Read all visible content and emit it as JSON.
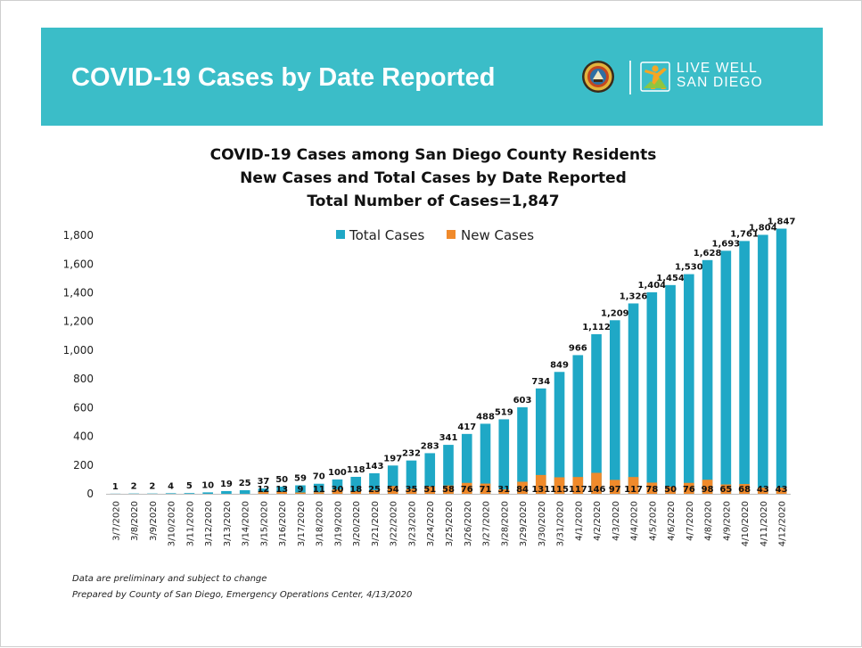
{
  "banner": {
    "title": "COVID-19 Cases by Date Reported",
    "logo_text_line1": "LIVE WELL",
    "logo_text_line2": "SAN DIEGO"
  },
  "colors": {
    "banner": "#3bbdc8",
    "total_series": "#1fa8c6",
    "new_series": "#f08a2b"
  },
  "chart_data": {
    "type": "bar",
    "title_lines": [
      "COVID-19 Cases among San Diego County Residents",
      "New Cases and Total Cases by Date Reported",
      "Total Number of Cases=1,847"
    ],
    "xlabel": "",
    "ylabel": "",
    "ylim": [
      0,
      1900
    ],
    "yticks": [
      0,
      200,
      400,
      600,
      800,
      1000,
      1200,
      1400,
      1600,
      1800
    ],
    "ytick_labels": [
      "0",
      "200",
      "400",
      "600",
      "800",
      "1,000",
      "1,200",
      "1,400",
      "1,600",
      "1,800"
    ],
    "grid": false,
    "legend_position": "top-center",
    "categories": [
      "3/7/2020",
      "3/8/2020",
      "3/9/2020",
      "3/10/2020",
      "3/11/2020",
      "3/12/2020",
      "3/13/2020",
      "3/14/2020",
      "3/15/2020",
      "3/16/2020",
      "3/17/2020",
      "3/18/2020",
      "3/19/2020",
      "3/20/2020",
      "3/21/2020",
      "3/22/2020",
      "3/23/2020",
      "3/24/2020",
      "3/25/2020",
      "3/26/2020",
      "3/27/2020",
      "3/28/2020",
      "3/29/2020",
      "3/30/2020",
      "3/31/2020",
      "4/1/2020",
      "4/2/2020",
      "4/3/2020",
      "4/4/2020",
      "4/5/2020",
      "4/6/2020",
      "4/7/2020",
      "4/8/2020",
      "4/9/2020",
      "4/10/2020",
      "4/11/2020",
      "4/12/2020"
    ],
    "series": [
      {
        "name": "Total Cases",
        "color": "#1fa8c6",
        "values": [
          1,
          2,
          2,
          4,
          5,
          10,
          19,
          25,
          37,
          50,
          59,
          70,
          100,
          118,
          143,
          197,
          232,
          283,
          341,
          417,
          488,
          519,
          603,
          734,
          849,
          966,
          1112,
          1209,
          1326,
          1404,
          1454,
          1530,
          1628,
          1693,
          1761,
          1804,
          1847
        ],
        "labels": [
          "1",
          "2",
          "2",
          "4",
          "5",
          "10",
          "19",
          "25",
          "37",
          "50",
          "59",
          "70",
          "100",
          "118",
          "143",
          "197",
          "232",
          "283",
          "341",
          "417",
          "488",
          "519",
          "603",
          "734",
          "849",
          "966",
          "1,112",
          "1,209",
          "1,326",
          "1,404",
          "1,454",
          "1,530",
          "1,628",
          "1,693",
          "1,761",
          "1,804",
          "1,847"
        ]
      },
      {
        "name": "New Cases",
        "color": "#f08a2b",
        "values": [
          null,
          null,
          null,
          null,
          null,
          null,
          null,
          null,
          12,
          13,
          9,
          11,
          30,
          18,
          25,
          54,
          35,
          51,
          58,
          76,
          71,
          31,
          84,
          131,
          115,
          117,
          146,
          97,
          117,
          78,
          50,
          76,
          98,
          65,
          68,
          43,
          43
        ],
        "labels": [
          "",
          "",
          "",
          "",
          "",
          "",
          "",
          "",
          "12",
          "13",
          "9",
          "11",
          "30",
          "18",
          "25",
          "54",
          "35",
          "51",
          "58",
          "76",
          "71",
          "31",
          "84",
          "131",
          "115",
          "117",
          "146",
          "97",
          "117",
          "78",
          "50",
          "76",
          "98",
          "65",
          "68",
          "43",
          "43"
        ]
      }
    ]
  },
  "footnotes": {
    "line1": "Data are preliminary and subject to change",
    "line2": "Prepared by County of San Diego, Emergency Operations Center, 4/13/2020"
  }
}
